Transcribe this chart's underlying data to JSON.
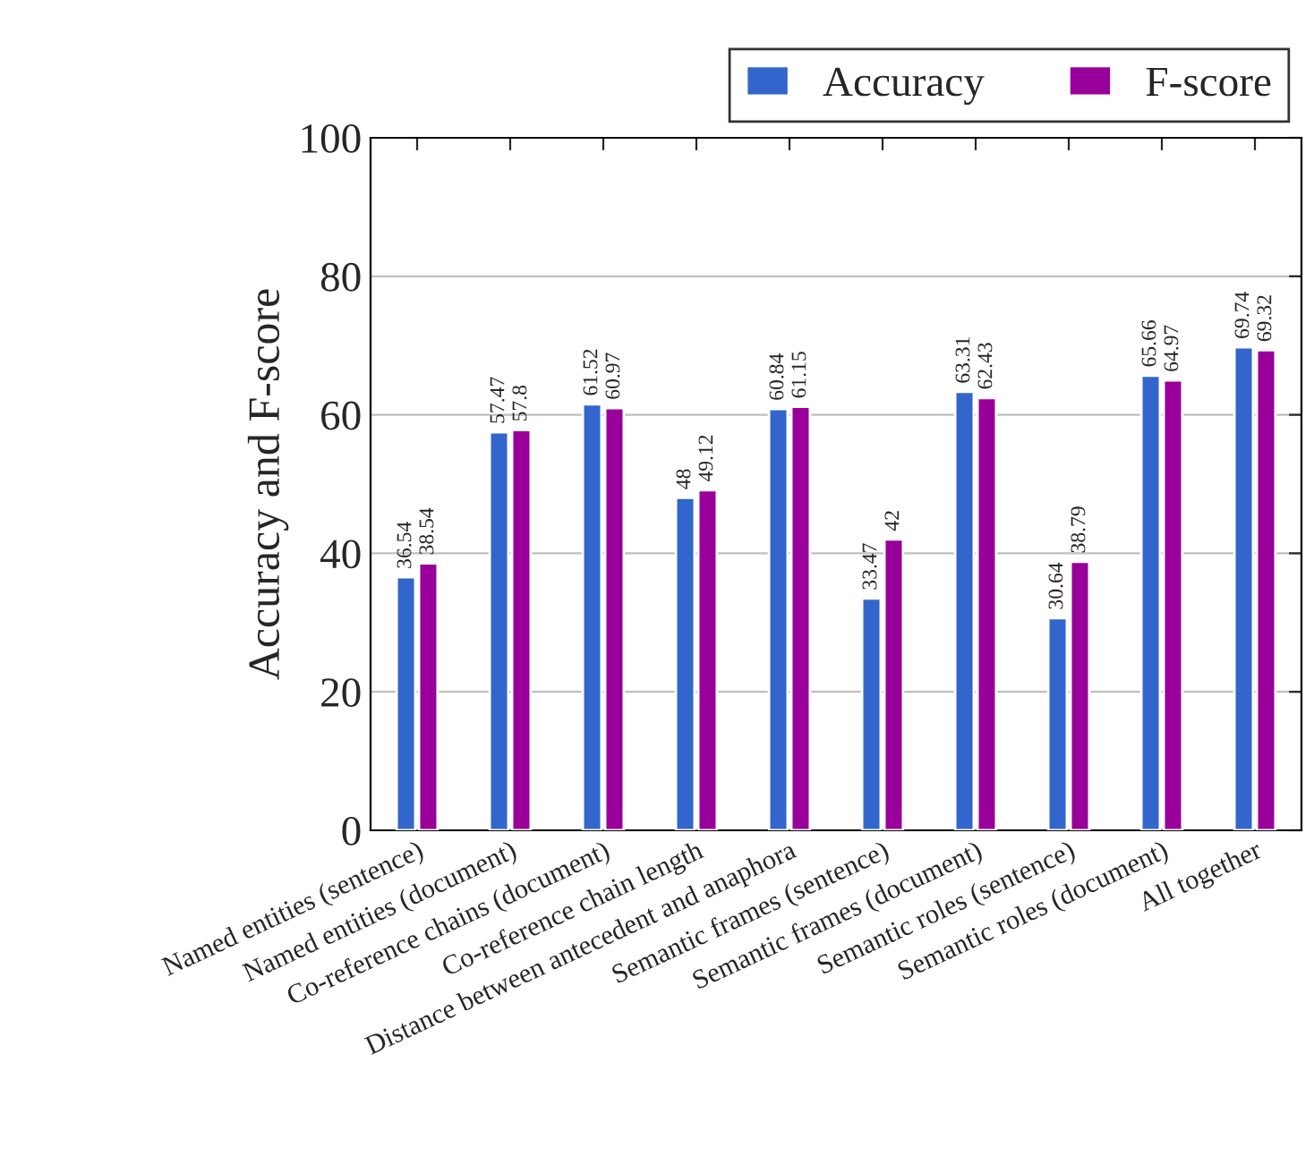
{
  "chart_data": {
    "type": "bar",
    "ylabel": "Accuracy and F-score",
    "categories": [
      "Named entities (sentence)",
      "Named entities (document)",
      "Co-reference chains (document)",
      "Co-reference chain length",
      "Distance between antecedent and anaphora",
      "Semantic frames (sentence)",
      "Semantic frames (document)",
      "Semantic roles (sentence)",
      "Semantic roles (document)",
      "All together"
    ],
    "series": [
      {
        "name": "Accuracy",
        "color": "#3366cc",
        "values": [
          36.54,
          57.47,
          61.52,
          48,
          60.84,
          33.47,
          63.31,
          30.64,
          65.66,
          69.74
        ]
      },
      {
        "name": "F-score",
        "color": "#990099",
        "values": [
          38.54,
          57.8,
          60.97,
          49.12,
          61.15,
          42,
          62.43,
          38.79,
          64.97,
          69.32
        ]
      }
    ],
    "ylim": [
      0,
      100
    ],
    "yticks": [
      0,
      20,
      40,
      60,
      80,
      100
    ],
    "grid": "y",
    "legend": "top right",
    "data_labels": true
  }
}
